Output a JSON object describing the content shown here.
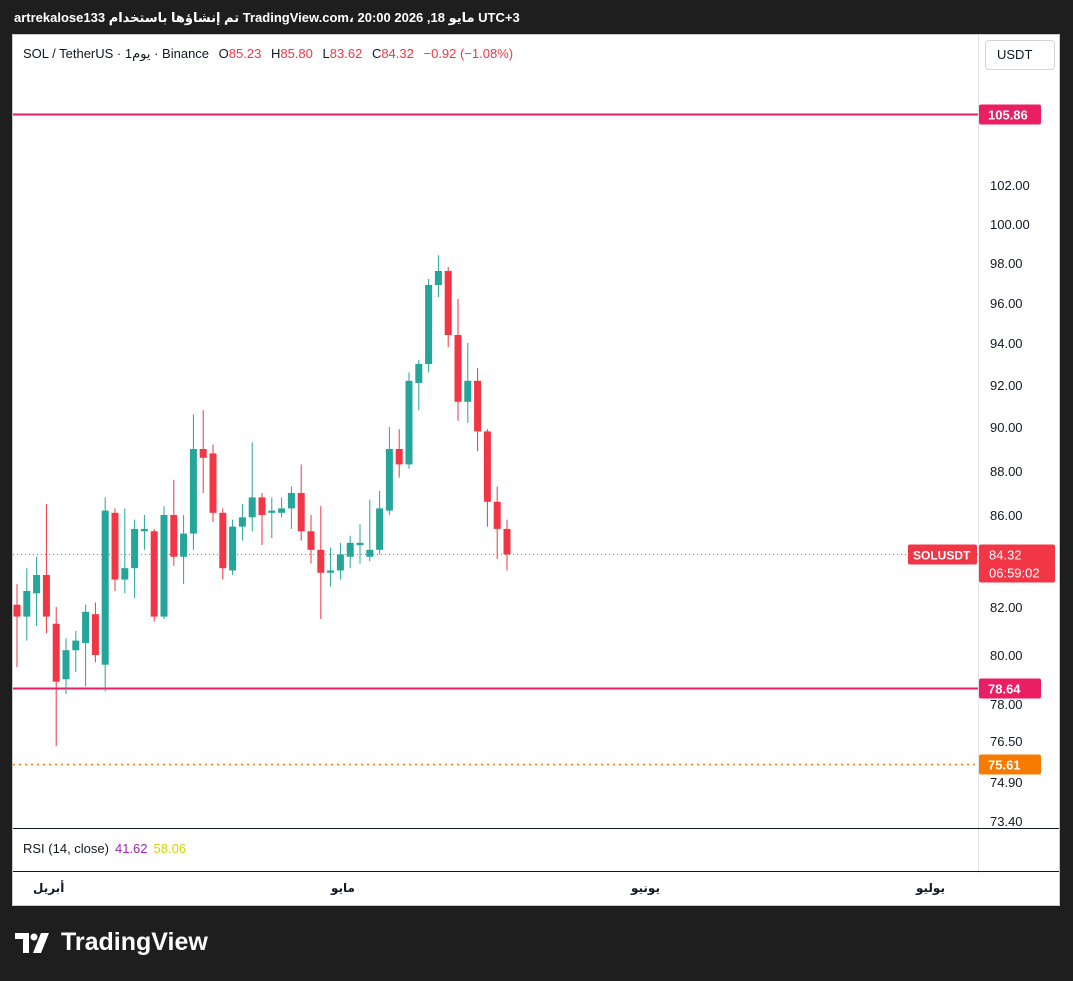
{
  "caption": "artrekalose133 تم إنشاؤها باستخدام TradingView.com، 20:00 2026 ,18 مايو UTC+3",
  "legend": {
    "symbol": "SOL / TetherUS · 1يوم · Binance",
    "o_label": "O",
    "o": "85.23",
    "h_label": "H",
    "h": "85.80",
    "l_label": "L",
    "l": "83.62",
    "c_label": "C",
    "c": "84.32",
    "change": "−0.92 (−1.08%)"
  },
  "currency_button": "USDT",
  "rsi": {
    "label": "RSI (14, close)",
    "value1": "41.62",
    "value2": "58.06"
  },
  "x_axis": {
    "april": "أبريل",
    "may": "مايو",
    "june": "يونيو",
    "july": "يوليو"
  },
  "brand": "TradingView",
  "colors": {
    "up": "#26a69a",
    "down": "#f23645",
    "level": "#e91e63",
    "support": "#f57c00"
  },
  "chart_data": {
    "type": "candlestick",
    "symbol": "SOLUSDT",
    "ylim": [
      73.4,
      107.0
    ],
    "y_ticks": [
      102.0,
      100.0,
      98.0,
      96.0,
      94.0,
      92.0,
      90.0,
      88.0,
      86.0,
      82.0,
      80.0,
      78.0,
      76.5,
      74.9,
      73.4
    ],
    "y_tick_labels": [
      "102.00",
      "100.00",
      "98.00",
      "96.00",
      "94.00",
      "92.00",
      "90.00",
      "88.00",
      "86.00",
      "82.00",
      "80.00",
      "78.00",
      "76.50",
      "74.90",
      "73.40"
    ],
    "last_price": {
      "value": 84.32,
      "label": "SOLUSDT",
      "price_text": "84.32",
      "countdown": "06:59:02"
    },
    "levels": [
      {
        "value": 105.86,
        "label": "105.86",
        "style": "solid",
        "color": "#e91e63"
      },
      {
        "value": 78.64,
        "label": "78.64",
        "style": "solid",
        "color": "#e91e63"
      },
      {
        "value": 75.61,
        "label": "75.61",
        "style": "dotted",
        "color": "#f57c00"
      }
    ],
    "candles": [
      {
        "o": 82.1,
        "h": 83.0,
        "l": 79.5,
        "c": 81.6
      },
      {
        "o": 81.6,
        "h": 83.7,
        "l": 80.6,
        "c": 82.7
      },
      {
        "o": 82.6,
        "h": 84.2,
        "l": 81.2,
        "c": 83.4
      },
      {
        "o": 83.4,
        "h": 86.5,
        "l": 80.9,
        "c": 81.6
      },
      {
        "o": 81.3,
        "h": 82.0,
        "l": 76.3,
        "c": 78.9
      },
      {
        "o": 79.0,
        "h": 80.7,
        "l": 78.4,
        "c": 80.2
      },
      {
        "o": 80.2,
        "h": 81.0,
        "l": 79.3,
        "c": 80.6
      },
      {
        "o": 80.5,
        "h": 82.1,
        "l": 78.7,
        "c": 81.8
      },
      {
        "o": 81.7,
        "h": 82.2,
        "l": 79.7,
        "c": 80.0
      },
      {
        "o": 79.6,
        "h": 86.8,
        "l": 78.5,
        "c": 86.2
      },
      {
        "o": 86.1,
        "h": 86.3,
        "l": 82.7,
        "c": 83.2
      },
      {
        "o": 83.2,
        "h": 86.3,
        "l": 82.6,
        "c": 83.7
      },
      {
        "o": 83.7,
        "h": 85.8,
        "l": 82.4,
        "c": 85.4
      },
      {
        "o": 85.3,
        "h": 86.0,
        "l": 84.5,
        "c": 85.4
      },
      {
        "o": 85.3,
        "h": 85.4,
        "l": 81.4,
        "c": 81.6
      },
      {
        "o": 81.6,
        "h": 86.4,
        "l": 81.5,
        "c": 86.0
      },
      {
        "o": 86.0,
        "h": 87.6,
        "l": 83.8,
        "c": 84.2
      },
      {
        "o": 84.2,
        "h": 86.0,
        "l": 83.0,
        "c": 85.2
      },
      {
        "o": 85.2,
        "h": 90.6,
        "l": 84.5,
        "c": 89.0
      },
      {
        "o": 89.0,
        "h": 90.8,
        "l": 87.0,
        "c": 88.6
      },
      {
        "o": 88.8,
        "h": 89.2,
        "l": 85.7,
        "c": 86.1
      },
      {
        "o": 86.1,
        "h": 86.3,
        "l": 83.2,
        "c": 83.7
      },
      {
        "o": 83.6,
        "h": 85.8,
        "l": 83.4,
        "c": 85.5
      },
      {
        "o": 85.5,
        "h": 86.5,
        "l": 84.9,
        "c": 85.9
      },
      {
        "o": 85.9,
        "h": 89.3,
        "l": 85.3,
        "c": 86.8
      },
      {
        "o": 86.8,
        "h": 87.0,
        "l": 84.7,
        "c": 86.0
      },
      {
        "o": 86.1,
        "h": 86.8,
        "l": 85.0,
        "c": 86.2
      },
      {
        "o": 86.1,
        "h": 86.8,
        "l": 85.9,
        "c": 86.3
      },
      {
        "o": 86.3,
        "h": 87.3,
        "l": 85.4,
        "c": 87.0
      },
      {
        "o": 87.0,
        "h": 88.3,
        "l": 84.9,
        "c": 85.3
      },
      {
        "o": 85.3,
        "h": 86.0,
        "l": 83.9,
        "c": 84.5
      },
      {
        "o": 84.5,
        "h": 86.4,
        "l": 81.5,
        "c": 83.5
      },
      {
        "o": 83.5,
        "h": 84.6,
        "l": 82.9,
        "c": 83.6
      },
      {
        "o": 83.6,
        "h": 84.8,
        "l": 83.2,
        "c": 84.3
      },
      {
        "o": 84.2,
        "h": 85.1,
        "l": 83.7,
        "c": 84.8
      },
      {
        "o": 84.7,
        "h": 85.6,
        "l": 83.9,
        "c": 84.8
      },
      {
        "o": 84.2,
        "h": 86.7,
        "l": 84.0,
        "c": 84.5
      },
      {
        "o": 84.5,
        "h": 87.1,
        "l": 84.3,
        "c": 86.3
      },
      {
        "o": 86.2,
        "h": 90.0,
        "l": 86.0,
        "c": 89.0
      },
      {
        "o": 89.0,
        "h": 89.9,
        "l": 87.7,
        "c": 88.3
      },
      {
        "o": 88.3,
        "h": 92.6,
        "l": 88.1,
        "c": 92.2
      },
      {
        "o": 92.1,
        "h": 93.2,
        "l": 90.8,
        "c": 93.0
      },
      {
        "o": 93.0,
        "h": 97.2,
        "l": 92.6,
        "c": 96.9
      },
      {
        "o": 96.9,
        "h": 98.4,
        "l": 96.3,
        "c": 97.6
      },
      {
        "o": 97.6,
        "h": 97.8,
        "l": 93.8,
        "c": 94.4
      },
      {
        "o": 94.4,
        "h": 96.2,
        "l": 90.3,
        "c": 91.2
      },
      {
        "o": 91.2,
        "h": 94.0,
        "l": 90.2,
        "c": 92.2
      },
      {
        "o": 92.2,
        "h": 92.8,
        "l": 88.9,
        "c": 89.8
      },
      {
        "o": 89.8,
        "h": 89.9,
        "l": 85.5,
        "c": 86.6
      },
      {
        "o": 86.6,
        "h": 87.3,
        "l": 84.1,
        "c": 85.4
      },
      {
        "o": 85.4,
        "h": 85.8,
        "l": 83.6,
        "c": 84.3
      }
    ]
  }
}
